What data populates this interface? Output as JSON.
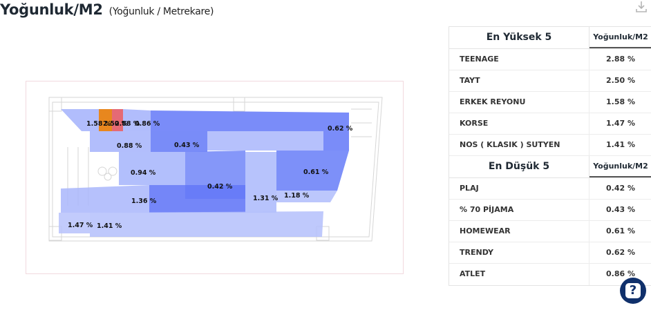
{
  "header": {
    "title": "Yoğunluk/M2",
    "subtitle": "(Yoğunluk / Metrekare)",
    "download_icon": "download-icon"
  },
  "floorplan": {
    "zones": [
      {
        "label": "1.58 %",
        "color": "#e8871e"
      },
      {
        "label": "2.50 %",
        "color": "#f29e24"
      },
      {
        "label": "2.88 %",
        "color": "#e0505d"
      },
      {
        "label": "0.86 %",
        "color": "#a3b2fb"
      },
      {
        "label": "0.62 %",
        "color": "#6c80f8"
      },
      {
        "label": "0.88 %",
        "color": "#a4b3fb"
      },
      {
        "label": "0.43 %",
        "color": "#6a7ff7"
      },
      {
        "label": "0.94 %",
        "color": "#a5b4fb"
      },
      {
        "label": "0.61 %",
        "color": "#6f84f8"
      },
      {
        "label": "0.42 %",
        "color": "#6579f7"
      },
      {
        "label": "1.36 %",
        "color": "#a9b6fb"
      },
      {
        "label": "1.31 %",
        "color": "#aab8fb"
      },
      {
        "label": "1.18 %",
        "color": "#b0bdfc"
      },
      {
        "label": "1.47 %",
        "color": "#b7c2fc"
      },
      {
        "label": "1.41 %",
        "color": "#b4c0fc"
      }
    ]
  },
  "panel": {
    "top_title": "En Yüksek 5",
    "column_label": "Yoğunluk/M2",
    "top_rows": [
      {
        "name": "TEENAGE",
        "value": "2.88 %"
      },
      {
        "name": "TAYT",
        "value": "2.50 %"
      },
      {
        "name": "ERKEK REYONU",
        "value": "1.58 %"
      },
      {
        "name": "KORSE",
        "value": "1.47 %"
      },
      {
        "name": "NOS ( KLASIK ) SUTYEN",
        "value": "1.41 %"
      }
    ],
    "bottom_title": "En Düşük 5",
    "bottom_rows": [
      {
        "name": "PLAJ",
        "value": "0.42 %"
      },
      {
        "name": "% 70 PİJAMA",
        "value": "0.43 %"
      },
      {
        "name": "HOMEWEAR",
        "value": "0.61 %"
      },
      {
        "name": "TRENDY",
        "value": "0.62 %"
      },
      {
        "name": "ATLET",
        "value": "0.86 %"
      }
    ]
  },
  "help": {
    "icon": "help-icon",
    "glyph": "?"
  }
}
